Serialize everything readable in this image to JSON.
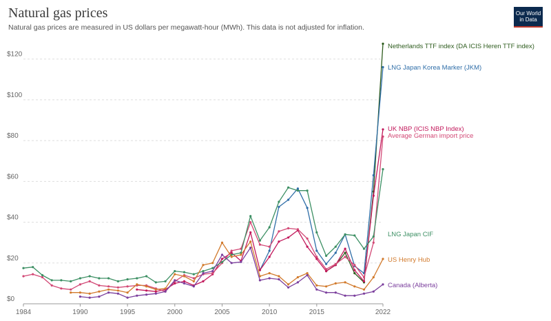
{
  "page": {
    "title": "Natural gas prices",
    "subtitle": "Natural gas prices are measured in US dollars per megawatt-hour (MWh). This data is not adjusted for inflation.",
    "logo_line1": "Our World",
    "logo_line2": "in Data"
  },
  "chart_data": {
    "type": "line",
    "title": "Natural gas prices",
    "ylim": [
      0,
      128
    ],
    "xlim": [
      1984,
      2022
    ],
    "y_ticks": [
      0,
      20,
      40,
      60,
      80,
      100,
      120
    ],
    "y_tick_labels": [
      "$0",
      "$20",
      "$40",
      "$60",
      "$80",
      "$100",
      "$120"
    ],
    "x_ticks": [
      1984,
      1990,
      1995,
      2000,
      2005,
      2010,
      2015,
      2022
    ],
    "x_tick_labels": [
      "1984",
      "1990",
      "1995",
      "2000",
      "2005",
      "2010",
      "2015",
      "2022"
    ],
    "grid": "horizontal-dashed",
    "legend": "line-end labels",
    "series": [
      {
        "name": "Netherlands TTF index (DA ICIS Heren TTF index)",
        "color": "#2e5c1e",
        "x": [
          2016,
          2017,
          2018,
          2019,
          2020,
          2021,
          2022
        ],
        "y": [
          16.0,
          19.0,
          25.0,
          15.0,
          10.5,
          55.0,
          127.5
        ]
      },
      {
        "name": "LNG Japan Korea Marker (JKM)",
        "color": "#2f6ea8",
        "x": [
          2009,
          2010,
          2011,
          2012,
          2013,
          2014,
          2015,
          2016,
          2017,
          2018,
          2019,
          2020,
          2021,
          2022
        ],
        "y": [
          16.5,
          26.0,
          47.5,
          51.0,
          56.5,
          47.0,
          26.0,
          19.5,
          25.0,
          34.0,
          18.5,
          15.0,
          63.0,
          116.0
        ]
      },
      {
        "name": "UK NBP (ICIS NBP Index)",
        "color": "#c2185b",
        "x": [
          1996,
          1997,
          1998,
          1999,
          2000,
          2001,
          2002,
          2003,
          2004,
          2005,
          2006,
          2007,
          2008,
          2009,
          2010,
          2011,
          2012,
          2013,
          2014,
          2015,
          2016,
          2017,
          2018,
          2019,
          2020,
          2021,
          2022
        ],
        "y": [
          7.0,
          6.5,
          6.0,
          7.0,
          10.0,
          11.0,
          9.0,
          11.0,
          14.5,
          22.0,
          25.0,
          21.0,
          35.0,
          16.5,
          23.0,
          30.5,
          32.5,
          36.0,
          28.0,
          22.0,
          16.0,
          19.0,
          27.0,
          16.5,
          11.0,
          53.0,
          85.5
        ]
      },
      {
        "name": "Average German import price",
        "color": "#d24875",
        "x": [
          1984,
          1985,
          1986,
          1987,
          1988,
          1989,
          1990,
          1991,
          1992,
          1993,
          1994,
          1995,
          1996,
          1997,
          1998,
          1999,
          2000,
          2001,
          2002,
          2003,
          2004,
          2005,
          2006,
          2007,
          2008,
          2009,
          2010,
          2011,
          2012,
          2013,
          2014,
          2015,
          2016,
          2017,
          2018,
          2019,
          2020,
          2021,
          2022
        ],
        "y": [
          13.5,
          14.5,
          13.0,
          9.0,
          7.5,
          7.0,
          9.5,
          11.0,
          9.0,
          8.5,
          8.0,
          8.5,
          9.0,
          9.0,
          7.5,
          6.0,
          11.0,
          14.0,
          12.5,
          14.5,
          15.0,
          20.0,
          26.0,
          27.0,
          40.0,
          29.0,
          28.0,
          35.5,
          37.0,
          36.5,
          32.0,
          23.0,
          17.0,
          19.5,
          23.0,
          19.0,
          13.0,
          30.0,
          82.0
        ]
      },
      {
        "name": "LNG Japan CIF",
        "color": "#3c8f63",
        "x": [
          1984,
          1985,
          1986,
          1987,
          1988,
          1989,
          1990,
          1991,
          1992,
          1993,
          1994,
          1995,
          1996,
          1997,
          1998,
          1999,
          2000,
          2001,
          2002,
          2003,
          2004,
          2005,
          2006,
          2007,
          2008,
          2009,
          2010,
          2011,
          2012,
          2013,
          2014,
          2015,
          2016,
          2017,
          2018,
          2019,
          2020,
          2021,
          2022
        ],
        "y": [
          17.5,
          18.0,
          14.0,
          11.5,
          11.5,
          11.0,
          12.5,
          13.5,
          12.5,
          12.5,
          11.0,
          12.0,
          12.5,
          13.5,
          10.5,
          11.0,
          16.0,
          15.5,
          14.5,
          16.0,
          17.5,
          20.5,
          24.0,
          25.0,
          43.0,
          31.0,
          37.5,
          50.0,
          57.0,
          55.5,
          55.5,
          35.0,
          23.5,
          28.0,
          34.0,
          33.5,
          27.0,
          33.0,
          66.0
        ]
      },
      {
        "name": "US Henry Hub",
        "color": "#d27a2c",
        "x": [
          1989,
          1990,
          1991,
          1992,
          1993,
          1994,
          1995,
          1996,
          1997,
          1998,
          1999,
          2000,
          2001,
          2002,
          2003,
          2004,
          2005,
          2006,
          2007,
          2008,
          2009,
          2010,
          2011,
          2012,
          2013,
          2014,
          2015,
          2016,
          2017,
          2018,
          2019,
          2020,
          2021,
          2022
        ],
        "y": [
          5.5,
          5.5,
          5.0,
          6.0,
          7.0,
          6.5,
          5.5,
          9.5,
          8.5,
          7.0,
          7.5,
          14.5,
          13.5,
          11.0,
          19.0,
          20.0,
          30.0,
          23.0,
          24.0,
          30.5,
          13.5,
          15.0,
          13.5,
          9.5,
          13.0,
          15.0,
          9.0,
          8.5,
          10.0,
          10.5,
          8.5,
          7.0,
          13.0,
          22.0
        ]
      },
      {
        "name": "Canada (Alberta)",
        "color": "#7b3f9d",
        "x": [
          1990,
          1991,
          1992,
          1993,
          1994,
          1995,
          1996,
          1997,
          1998,
          1999,
          2000,
          2001,
          2002,
          2003,
          2004,
          2005,
          2006,
          2007,
          2008,
          2009,
          2010,
          2011,
          2012,
          2013,
          2014,
          2015,
          2016,
          2017,
          2018,
          2019,
          2020,
          2021,
          2022
        ],
        "y": [
          3.5,
          3.0,
          3.5,
          5.5,
          5.0,
          3.0,
          4.0,
          4.5,
          5.0,
          6.0,
          11.5,
          10.0,
          8.5,
          15.0,
          16.0,
          24.0,
          20.0,
          20.5,
          27.5,
          11.5,
          12.5,
          12.0,
          8.0,
          10.5,
          14.0,
          7.0,
          5.5,
          5.5,
          4.0,
          4.0,
          5.0,
          6.0,
          9.5
        ]
      }
    ]
  }
}
